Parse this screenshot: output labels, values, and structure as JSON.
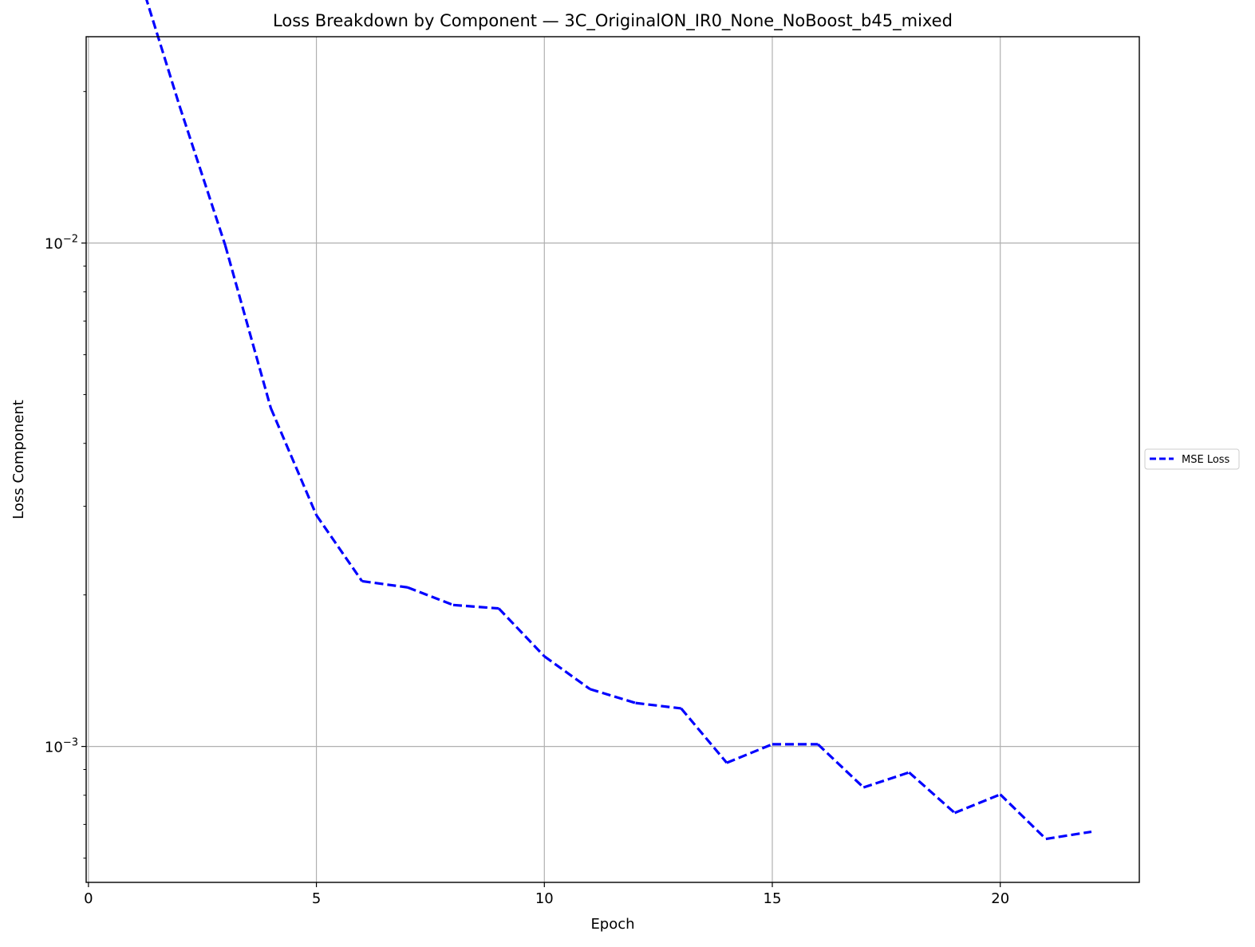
{
  "chart_data": {
    "type": "line",
    "title": "Loss Breakdown by Component — 3C_OriginalON_IR0_None_NoBoost_b45_mixed",
    "xlabel": "Epoch",
    "ylabel": "Loss Component",
    "xlim": [
      -0.05,
      23.05
    ],
    "ylim": [
      0.000537,
      0.0257
    ],
    "yscale": "log",
    "grid": true,
    "legend_position": "right",
    "x_ticks": [
      0,
      5,
      10,
      15,
      20
    ],
    "x_tick_labels": [
      "0",
      "5",
      "10",
      "15",
      "20"
    ],
    "y_major_ticks": [
      0.001,
      0.01
    ],
    "y_tick_labels": [
      {
        "base": "10",
        "exp": "−3"
      },
      {
        "base": "10",
        "exp": "−2"
      }
    ],
    "y_minor_ticks": [
      0.0006,
      0.0007,
      0.0008,
      0.0009,
      0.002,
      0.003,
      0.004,
      0.005,
      0.006,
      0.007,
      0.008,
      0.009,
      0.02
    ],
    "series": [
      {
        "name": "MSE Loss",
        "color": "#0000ff",
        "line_style": "dashed",
        "x": [
          1,
          2,
          3,
          4,
          5,
          6,
          7,
          8,
          9,
          10,
          11,
          12,
          13,
          14,
          15,
          16,
          17,
          18,
          19,
          20,
          21,
          22
        ],
        "values": [
          0.0366,
          0.0187,
          0.0099,
          0.0047,
          0.00288,
          0.00213,
          0.00207,
          0.00191,
          0.00188,
          0.00151,
          0.0013,
          0.00122,
          0.00119,
          0.000928,
          0.00101,
          0.00101,
          0.000829,
          0.000888,
          0.000738,
          0.000803,
          0.000655,
          0.000677
        ]
      }
    ]
  }
}
